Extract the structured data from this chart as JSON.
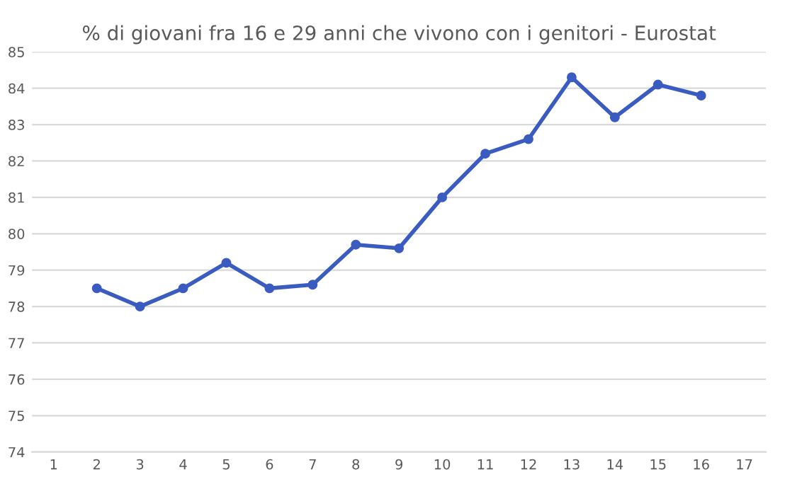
{
  "chart_data": {
    "type": "line",
    "title": "% di giovani fra 16 e 29 anni che vivono con i genitori - Eurostat",
    "categories": [
      "1",
      "2",
      "3",
      "4",
      "5",
      "6",
      "7",
      "8",
      "9",
      "10",
      "11",
      "12",
      "13",
      "14",
      "15",
      "16",
      "17"
    ],
    "series": [
      {
        "color": "#3a5bbf",
        "values": [
          null,
          78.5,
          78.0,
          78.5,
          79.2,
          78.5,
          78.6,
          79.7,
          79.6,
          81.0,
          82.2,
          82.6,
          84.3,
          83.2,
          84.1,
          83.8,
          null
        ]
      }
    ],
    "ylim": [
      74,
      85
    ],
    "yticks": [
      74,
      75,
      76,
      77,
      78,
      79,
      80,
      81,
      82,
      83,
      84,
      85
    ],
    "grid": "y",
    "marker": "circle",
    "line_style": "solid"
  }
}
